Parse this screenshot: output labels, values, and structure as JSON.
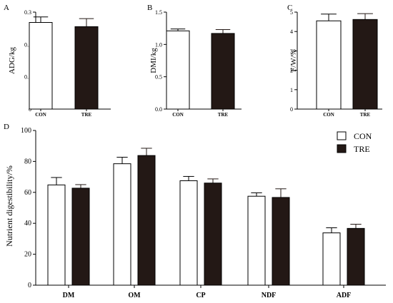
{
  "colors": {
    "con_fill": "#ffffff",
    "tre_fill": "#231815",
    "stroke": "#000000",
    "error_bar_con": "#000000",
    "error_bar_tre": "#231815"
  },
  "chart_data": [
    {
      "panel": "A",
      "type": "bar",
      "categories": [
        "CON",
        "TRE"
      ],
      "values": [
        0.268,
        0.255
      ],
      "errors": [
        0.017,
        0.025
      ],
      "ylabel": "ADG/kg",
      "ylim": [
        0,
        0.3
      ],
      "yticks": [
        0,
        0.1,
        0.2,
        0.3
      ],
      "yticklabels": [
        "0",
        "0.1",
        "0.2",
        "0.3"
      ]
    },
    {
      "panel": "B",
      "type": "bar",
      "categories": [
        "CON",
        "TRE"
      ],
      "values": [
        1.21,
        1.17
      ],
      "errors": [
        0.03,
        0.06
      ],
      "ylabel": "DMI/kg",
      "ylim": [
        0,
        1.5
      ],
      "yticks": [
        0,
        0.5,
        1,
        1.5
      ],
      "yticklabels": [
        "0.0",
        "0.5",
        "1.0",
        "1.5"
      ]
    },
    {
      "panel": "C",
      "type": "bar",
      "categories": [
        "CON",
        "TRE"
      ],
      "values": [
        4.55,
        4.62
      ],
      "errors": [
        0.35,
        0.3
      ],
      "ylabel": "F/W/%",
      "ylim": [
        0,
        5
      ],
      "yticks": [
        0,
        1,
        2,
        3,
        4,
        5
      ],
      "yticklabels": [
        "0",
        "1",
        "2",
        "3",
        "4",
        "5"
      ]
    },
    {
      "panel": "D",
      "type": "bar",
      "categories": [
        "DM",
        "OM",
        "CP",
        "NDF",
        "ADF"
      ],
      "series": [
        {
          "name": "CON",
          "values": [
            64.8,
            78.5,
            67.5,
            57.5,
            33.8
          ],
          "errors": [
            4.8,
            4.2,
            2.8,
            2.2,
            3.3
          ]
        },
        {
          "name": "TRE",
          "values": [
            62.7,
            83.8,
            66.0,
            56.7,
            36.7
          ],
          "errors": [
            2.3,
            4.7,
            2.7,
            5.6,
            2.7
          ]
        }
      ],
      "ylabel": "Nutrient digestibility/%",
      "ylim": [
        0,
        100
      ],
      "yticks": [
        0,
        20,
        40,
        60,
        80,
        100
      ],
      "yticklabels": [
        "0",
        "20",
        "40",
        "60",
        "80",
        "100"
      ],
      "legend": "top-right"
    }
  ]
}
